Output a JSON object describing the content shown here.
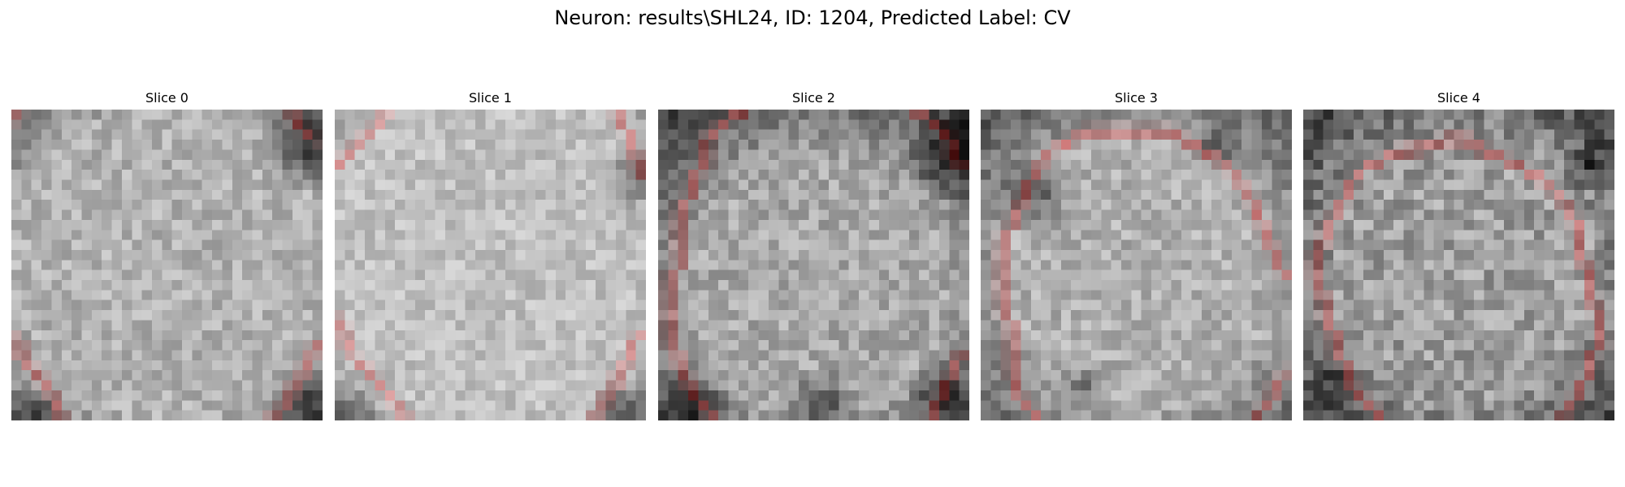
{
  "figure": {
    "title": "Neuron: results\\SHL24, ID: 1204, Predicted Label: CV"
  },
  "panels": [
    {
      "title": "Slice 0"
    },
    {
      "title": "Slice 1"
    },
    {
      "title": "Slice 2"
    },
    {
      "title": "Slice 3"
    },
    {
      "title": "Slice 4"
    }
  ],
  "colors": {
    "contour": "#ff0000",
    "background": "#ffffff"
  }
}
